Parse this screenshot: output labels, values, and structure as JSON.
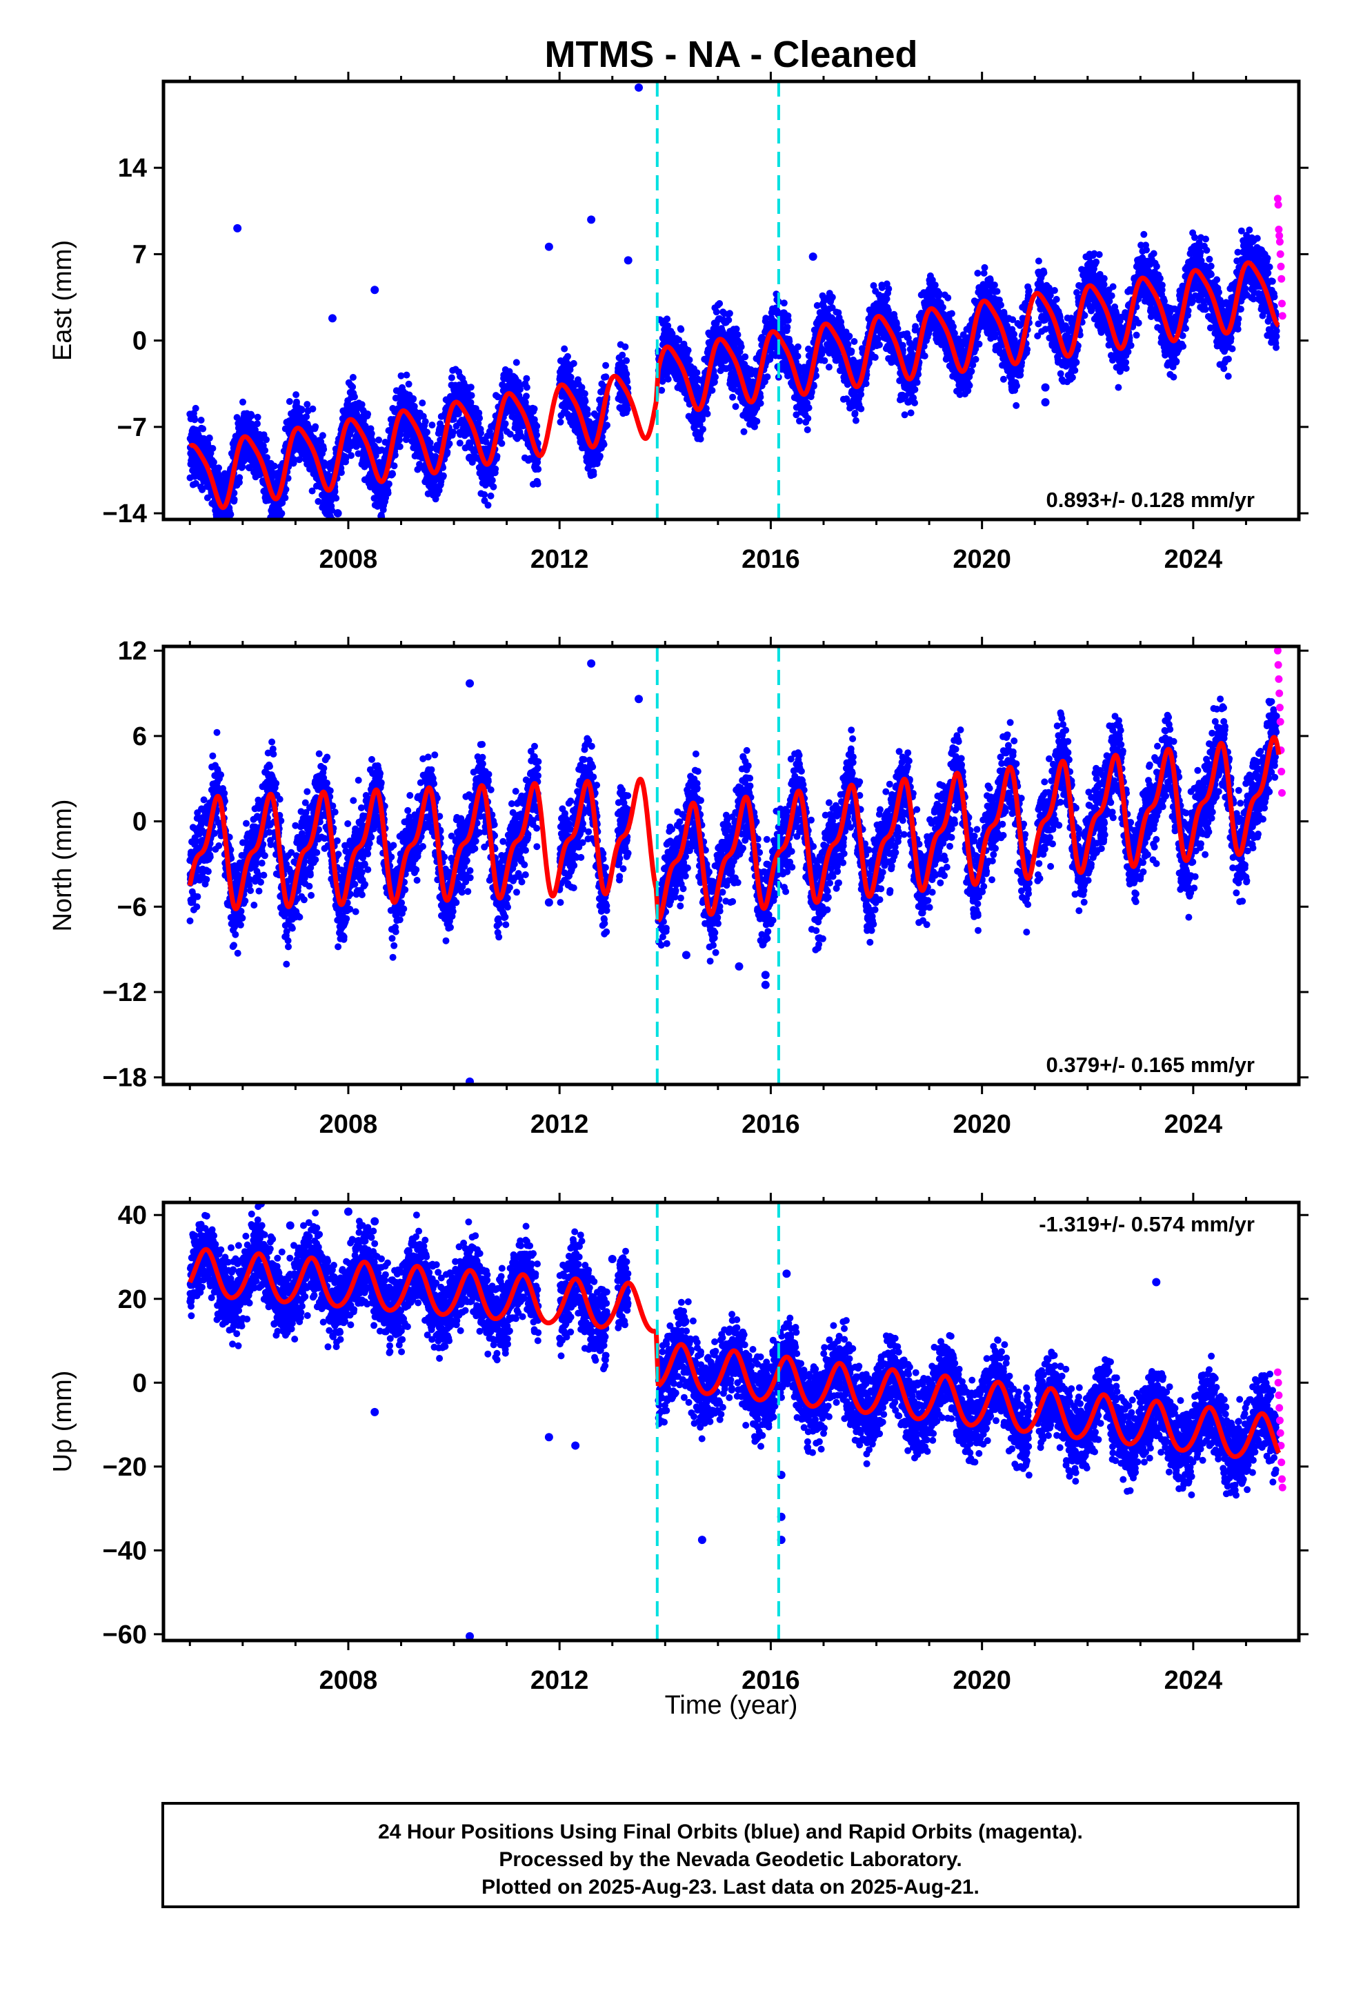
{
  "title": "MTMS  - NA - Cleaned",
  "x_axis_label": "Time (year)",
  "footer": [
    "24 Hour Positions Using Final Orbits (blue) and Rapid Orbits (magenta).",
    "Processed by the Nevada Geodetic Laboratory.",
    "Plotted on 2025-Aug-23. Last data on 2025-Aug-21."
  ],
  "colors": {
    "final_orbits": "#0000ff",
    "rapid_orbits": "#ff00ff",
    "model": "#ff0000",
    "equipment_change": "#00e0e0",
    "frame": "#000000"
  },
  "chart_data": [
    {
      "type": "scatter",
      "component": "East",
      "ylabel": "East (mm)",
      "xlim": [
        2004.5,
        2026.0
      ],
      "ylim": [
        -14.5,
        21
      ],
      "xticks": [
        2008,
        2012,
        2016,
        2020,
        2024
      ],
      "yticks": [
        14,
        7,
        0,
        -7,
        -14
      ],
      "ytick_labels": [
        "14",
        "7",
        "0",
        "−7",
        "−14"
      ],
      "rate_label": "0.893+/- 0.128 mm/yr",
      "rate_position": "bottom-right",
      "steps": [
        2013.85,
        2016.15
      ],
      "model": {
        "amp1": 2.6,
        "phase1": 0.85,
        "amp2": 0.5,
        "phase2": 0.3,
        "segments": [
          {
            "start": 2005.0,
            "end": 2013.83,
            "offset": -4.0,
            "rate": 0.7
          },
          {
            "start": 2013.87,
            "end": 2025.62,
            "offset": -2.4,
            "rate": 0.62
          }
        ]
      },
      "scatter_sigma": 1.3,
      "data_gaps": [
        [
          2011.6,
          2012.0
        ],
        [
          2012.9,
          2013.1
        ],
        [
          2013.3,
          2013.85
        ],
        [
          2020.9,
          2021.05
        ]
      ],
      "outliers": [
        [
          2005.9,
          9.1
        ],
        [
          2007.7,
          1.8
        ],
        [
          2007.8,
          -14.0
        ],
        [
          2008.5,
          4.1
        ],
        [
          2010.3,
          -9.5
        ],
        [
          2011.8,
          7.6
        ],
        [
          2012.6,
          9.8
        ],
        [
          2013.3,
          6.5
        ],
        [
          2013.5,
          20.5
        ],
        [
          2016.8,
          6.8
        ],
        [
          2021.2,
          -3.8
        ],
        [
          2021.2,
          -5.0
        ]
      ],
      "rapid_points": [
        [
          2025.6,
          11.5
        ],
        [
          2025.61,
          11.0
        ],
        [
          2025.62,
          9.0
        ],
        [
          2025.63,
          8.5
        ],
        [
          2025.64,
          8.0
        ],
        [
          2025.65,
          7.0
        ],
        [
          2025.66,
          6.0
        ],
        [
          2025.67,
          5.0
        ],
        [
          2025.68,
          3.0
        ],
        [
          2025.69,
          2.0
        ]
      ]
    },
    {
      "type": "scatter",
      "component": "North",
      "ylabel": "North (mm)",
      "xlim": [
        2004.5,
        2026.0
      ],
      "ylim": [
        -18.5,
        12.3
      ],
      "xticks": [
        2008,
        2012,
        2016,
        2020,
        2024
      ],
      "yticks": [
        12,
        6,
        0,
        -6,
        -12,
        -18
      ],
      "ytick_labels": [
        "12",
        "6",
        "0",
        "−6",
        "−12",
        "−18"
      ],
      "rate_label": "0.379+/- 0.165 mm/yr",
      "rate_position": "bottom-right",
      "steps": [
        2013.85,
        2016.15
      ],
      "model": {
        "amp1": 3.2,
        "phase1": 0.2,
        "amp2": 1.4,
        "phase2": 0.45,
        "segments": [
          {
            "start": 2005.0,
            "end": 2013.83,
            "offset": -0.8,
            "rate": 0.15
          },
          {
            "start": 2013.87,
            "end": 2025.62,
            "offset": -2.5,
            "rate": 0.42
          }
        ]
      },
      "scatter_sigma": 1.5,
      "data_gaps": [
        [
          2011.6,
          2012.0
        ],
        [
          2012.9,
          2013.1
        ],
        [
          2013.3,
          2013.85
        ],
        [
          2020.9,
          2021.05
        ]
      ],
      "outliers": [
        [
          2010.3,
          9.7
        ],
        [
          2010.3,
          -18.3
        ],
        [
          2011.8,
          -5.7
        ],
        [
          2012.6,
          11.1
        ],
        [
          2013.5,
          8.6
        ],
        [
          2014.4,
          -9.4
        ],
        [
          2015.4,
          -10.2
        ],
        [
          2015.9,
          -10.8
        ],
        [
          2015.9,
          -11.5
        ]
      ],
      "rapid_points": [
        [
          2025.6,
          12.0
        ],
        [
          2025.61,
          11.0
        ],
        [
          2025.62,
          10.0
        ],
        [
          2025.63,
          9.0
        ],
        [
          2025.64,
          8.0
        ],
        [
          2025.65,
          7.0
        ],
        [
          2025.66,
          5.0
        ],
        [
          2025.67,
          3.5
        ],
        [
          2025.68,
          2.0
        ]
      ]
    },
    {
      "type": "scatter",
      "component": "Up",
      "ylabel": "Up (mm)",
      "xlim": [
        2004.5,
        2026.0
      ],
      "ylim": [
        -61.5,
        43
      ],
      "xticks": [
        2008,
        2012,
        2016,
        2020,
        2024
      ],
      "yticks": [
        40,
        20,
        0,
        -20,
        -40,
        -60
      ],
      "ytick_labels": [
        "40",
        "20",
        "0",
        "−20",
        "−40",
        "−60"
      ],
      "rate_label": "-1.319+/- 0.574 mm/yr",
      "rate_position": "top-right",
      "steps": [
        2013.85,
        2016.15
      ],
      "model": {
        "amp1": 5.5,
        "phase1": 0.05,
        "amp2": 0.6,
        "phase2": 0.2,
        "segments": [
          {
            "start": 2005.0,
            "end": 2013.83,
            "offset": 16.0,
            "rate": -1.0
          },
          {
            "start": 2013.87,
            "end": 2025.62,
            "offset": 2.0,
            "rate": -1.5
          }
        ]
      },
      "scatter_sigma": 4.5,
      "data_gaps": [
        [
          2011.6,
          2012.0
        ],
        [
          2012.9,
          2013.1
        ],
        [
          2013.3,
          2013.85
        ],
        [
          2020.9,
          2021.05
        ]
      ],
      "outliers": [
        [
          2006.9,
          37.5
        ],
        [
          2008.0,
          40.8
        ],
        [
          2008.5,
          38.5
        ],
        [
          2008.5,
          -7.0
        ],
        [
          2010.3,
          -60.5
        ],
        [
          2011.8,
          -13.0
        ],
        [
          2012.3,
          -15.0
        ],
        [
          2013.0,
          29.5
        ],
        [
          2014.7,
          -37.5
        ],
        [
          2016.2,
          -22.0
        ],
        [
          2016.2,
          -32.0
        ],
        [
          2016.2,
          -37.5
        ],
        [
          2016.3,
          26.0
        ],
        [
          2023.3,
          24.0
        ]
      ],
      "rapid_points": [
        [
          2025.6,
          2.5
        ],
        [
          2025.61,
          0.0
        ],
        [
          2025.62,
          -3.0
        ],
        [
          2025.63,
          -6.0
        ],
        [
          2025.64,
          -9.0
        ],
        [
          2025.65,
          -12.0
        ],
        [
          2025.66,
          -15.0
        ],
        [
          2025.67,
          -19.0
        ],
        [
          2025.68,
          -23.0
        ],
        [
          2025.69,
          -25.0
        ]
      ]
    }
  ]
}
